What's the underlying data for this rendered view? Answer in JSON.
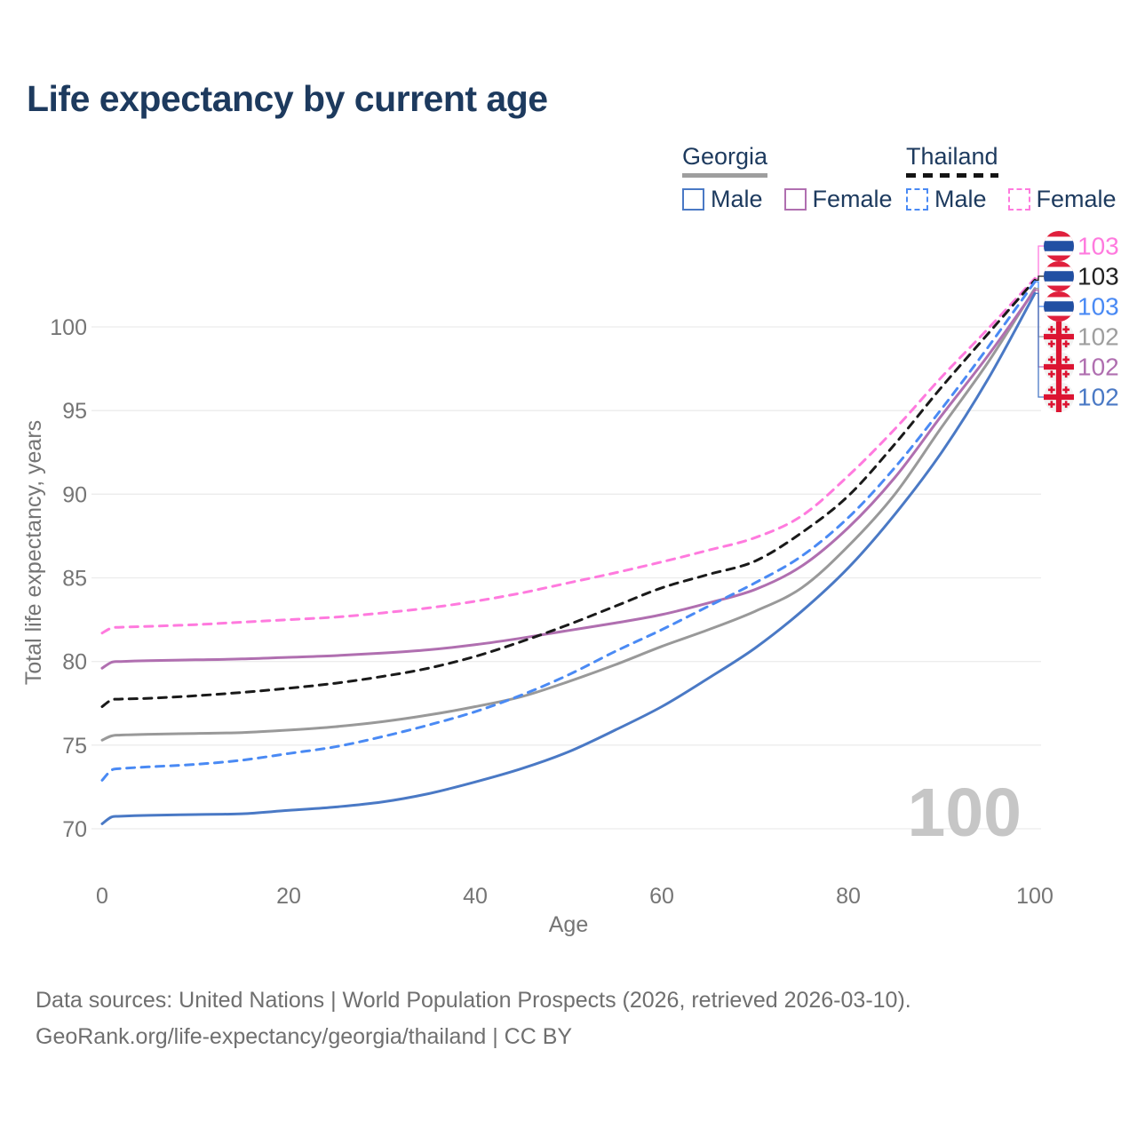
{
  "title": "Life expectancy by current age",
  "legend": {
    "groups": [
      {
        "name": "Georgia",
        "line_style": "solid",
        "underline_color": "#9e9e9e",
        "items": [
          {
            "label": "Male",
            "color": "#4a79c5"
          },
          {
            "label": "Female",
            "color": "#b06fb0"
          }
        ]
      },
      {
        "name": "Thailand",
        "line_style": "dashed",
        "underline_color": "#141414",
        "items": [
          {
            "label": "Male",
            "color": "#4a8af4"
          },
          {
            "label": "Female",
            "color": "#ff7ade"
          }
        ]
      }
    ]
  },
  "chart_data": {
    "type": "line",
    "xlabel": "Age",
    "ylabel": "Total life expectancy, years",
    "xticks": [
      0,
      20,
      40,
      60,
      80,
      100
    ],
    "yticks": [
      70,
      75,
      80,
      85,
      90,
      95,
      100
    ],
    "xlim": [
      0,
      100
    ],
    "ylim": [
      69.5,
      103.5
    ],
    "grid": true,
    "legend_position": "top-right",
    "watermark": "100",
    "x": [
      0,
      1,
      2,
      5,
      10,
      15,
      20,
      25,
      30,
      35,
      40,
      45,
      50,
      55,
      60,
      65,
      70,
      75,
      80,
      85,
      90,
      95,
      100
    ],
    "series": [
      {
        "name": "Thailand Female",
        "end_label": "103",
        "label_color": "#ff7ade",
        "color": "#ff7ade",
        "dash": true,
        "flag": "thailand",
        "values": [
          81.7,
          82.0,
          82.05,
          82.1,
          82.2,
          82.35,
          82.5,
          82.65,
          82.9,
          83.2,
          83.6,
          84.1,
          84.7,
          85.3,
          85.95,
          86.65,
          87.4,
          88.7,
          91.1,
          93.9,
          97.0,
          99.9,
          102.9
        ]
      },
      {
        "name": "Thailand Both sexes",
        "end_label": "103",
        "label_color": "#222222",
        "color": "#1a1a1a",
        "dash": true,
        "flag": "thailand",
        "values": [
          77.3,
          77.7,
          77.75,
          77.8,
          77.95,
          78.15,
          78.4,
          78.7,
          79.1,
          79.6,
          80.3,
          81.2,
          82.2,
          83.3,
          84.4,
          85.2,
          86.0,
          87.7,
          89.9,
          93.0,
          96.4,
          99.6,
          102.8
        ]
      },
      {
        "name": "Thailand Male",
        "end_label": "103",
        "label_color": "#4a8af4",
        "color": "#4a8af4",
        "dash": true,
        "flag": "thailand",
        "values": [
          72.9,
          73.5,
          73.6,
          73.7,
          73.85,
          74.1,
          74.5,
          74.9,
          75.5,
          76.2,
          77.0,
          78.0,
          79.2,
          80.6,
          81.9,
          83.3,
          84.7,
          86.3,
          88.6,
          91.6,
          95.1,
          98.8,
          102.7
        ]
      },
      {
        "name": "Georgia Both sexes",
        "end_label": "102",
        "label_color": "#9e9e9e",
        "color": "#999999",
        "dash": false,
        "flag": "georgia",
        "values": [
          75.3,
          75.55,
          75.6,
          75.65,
          75.7,
          75.75,
          75.9,
          76.1,
          76.4,
          76.8,
          77.3,
          77.9,
          78.8,
          79.8,
          80.9,
          81.9,
          83.0,
          84.4,
          86.9,
          90.0,
          94.0,
          97.9,
          102.3
        ]
      },
      {
        "name": "Georgia Female",
        "end_label": "102",
        "label_color": "#b06fb0",
        "color": "#b06fb0",
        "dash": false,
        "flag": "georgia",
        "values": [
          79.6,
          79.95,
          80.0,
          80.05,
          80.1,
          80.15,
          80.25,
          80.35,
          80.5,
          80.7,
          81.0,
          81.4,
          81.85,
          82.3,
          82.8,
          83.5,
          84.3,
          85.7,
          88.0,
          91.0,
          94.7,
          98.3,
          102.2
        ]
      },
      {
        "name": "Georgia Male",
        "end_label": "102",
        "label_color": "#4a79c5",
        "color": "#4a79c5",
        "dash": false,
        "flag": "georgia",
        "values": [
          70.3,
          70.7,
          70.75,
          70.8,
          70.85,
          70.9,
          71.1,
          71.3,
          71.6,
          72.1,
          72.8,
          73.6,
          74.6,
          75.9,
          77.3,
          79.0,
          80.8,
          83.0,
          85.6,
          88.8,
          92.5,
          96.9,
          102.0
        ]
      }
    ]
  },
  "footer": {
    "line1": "Data sources: United Nations | World Population Prospects (2026, retrieved 2026-03-10).",
    "line2": "GeoRank.org/life-expectancy/georgia/thailand | CC BY"
  },
  "styles": {
    "grid_color": "#ececec",
    "tick_color": "#757575",
    "watermark_color": "#c6c6c6",
    "thai_flag_red": "#e0203d",
    "thai_flag_blue": "#2150a3",
    "thai_flag_white": "#ffffff",
    "georgia_flag_bg": "#f2f2f2",
    "georgia_flag_red": "#dc1432"
  }
}
